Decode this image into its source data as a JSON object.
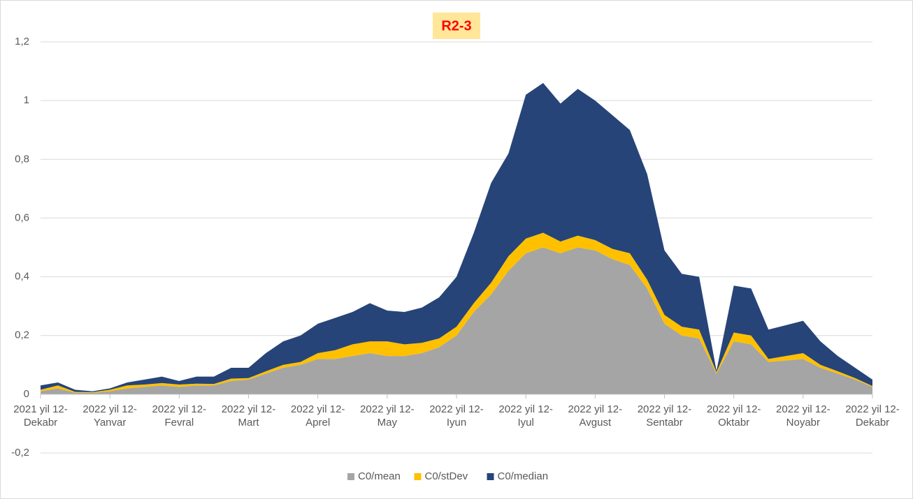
{
  "chart_data": {
    "type": "stacked_area",
    "title": "R2-3",
    "categories": [
      "2021 yil 12-Dekabr",
      null,
      null,
      null,
      "2022 yil 12-Yanvar",
      null,
      null,
      null,
      "2022 yil 12-Fevral",
      null,
      null,
      null,
      "2022 yil 12-Mart",
      null,
      null,
      null,
      "2022 yil 12-Aprel",
      null,
      null,
      null,
      "2022 yil 12-May",
      null,
      null,
      null,
      "2022 yil 12-Iyun",
      null,
      null,
      null,
      "2022 yil 12-Iyul",
      null,
      null,
      null,
      "2022 yil 12-Avgust",
      null,
      null,
      null,
      "2022 yil 12-Sentabr",
      null,
      null,
      null,
      "2022 yil 12-Oktabr",
      null,
      null,
      null,
      "2022 yil 12-Noyabr",
      null,
      null,
      null,
      "2022 yil 12-Dekabr"
    ],
    "series": [
      {
        "name": "C0/mean",
        "color": "#a5a5a5",
        "values": [
          0.01,
          0.02,
          0.005,
          0.005,
          0.01,
          0.02,
          0.025,
          0.03,
          0.025,
          0.03,
          0.03,
          0.045,
          0.05,
          0.07,
          0.09,
          0.1,
          0.12,
          0.12,
          0.13,
          0.14,
          0.13,
          0.13,
          0.14,
          0.16,
          0.2,
          0.28,
          0.34,
          0.42,
          0.48,
          0.5,
          0.48,
          0.5,
          0.49,
          0.46,
          0.44,
          0.36,
          0.24,
          0.2,
          0.19,
          0.07,
          0.18,
          0.17,
          0.11,
          0.115,
          0.12,
          0.09,
          0.07,
          0.05,
          0.025
        ]
      },
      {
        "name": "C0/stDev",
        "color": "#ffc000",
        "values": [
          0.005,
          0.01,
          0.003,
          0.002,
          0.005,
          0.01,
          0.008,
          0.008,
          0.008,
          0.006,
          0.005,
          0.008,
          0.005,
          0.008,
          0.01,
          0.01,
          0.02,
          0.03,
          0.04,
          0.04,
          0.05,
          0.04,
          0.035,
          0.03,
          0.03,
          0.03,
          0.04,
          0.05,
          0.05,
          0.05,
          0.04,
          0.04,
          0.035,
          0.035,
          0.04,
          0.03,
          0.03,
          0.03,
          0.03,
          0.005,
          0.03,
          0.03,
          0.01,
          0.015,
          0.02,
          0.01,
          0.008,
          0.005,
          0.003
        ]
      },
      {
        "name": "C0/median",
        "color": "#264478",
        "values": [
          0.015,
          0.01,
          0.007,
          0.003,
          0.005,
          0.01,
          0.017,
          0.022,
          0.012,
          0.024,
          0.025,
          0.037,
          0.035,
          0.062,
          0.08,
          0.09,
          0.1,
          0.11,
          0.11,
          0.13,
          0.105,
          0.11,
          0.12,
          0.14,
          0.17,
          0.24,
          0.34,
          0.35,
          0.49,
          0.51,
          0.47,
          0.5,
          0.475,
          0.455,
          0.42,
          0.36,
          0.22,
          0.18,
          0.18,
          0.005,
          0.16,
          0.16,
          0.1,
          0.105,
          0.11,
          0.08,
          0.052,
          0.035,
          0.022
        ]
      }
    ],
    "ylim": [
      -0.2,
      1.2
    ],
    "yticks": [
      {
        "value": -0.2,
        "label": "-0,2"
      },
      0,
      {
        "value": 0.2,
        "label": "0,2"
      },
      {
        "value": 0.4,
        "label": "0,4"
      },
      {
        "value": 0.6,
        "label": "0,6"
      },
      {
        "value": 0.8,
        "label": "0,8"
      },
      1,
      {
        "value": 1.2,
        "label": "1,2"
      }
    ],
    "grid": true,
    "legend": "bottom"
  }
}
